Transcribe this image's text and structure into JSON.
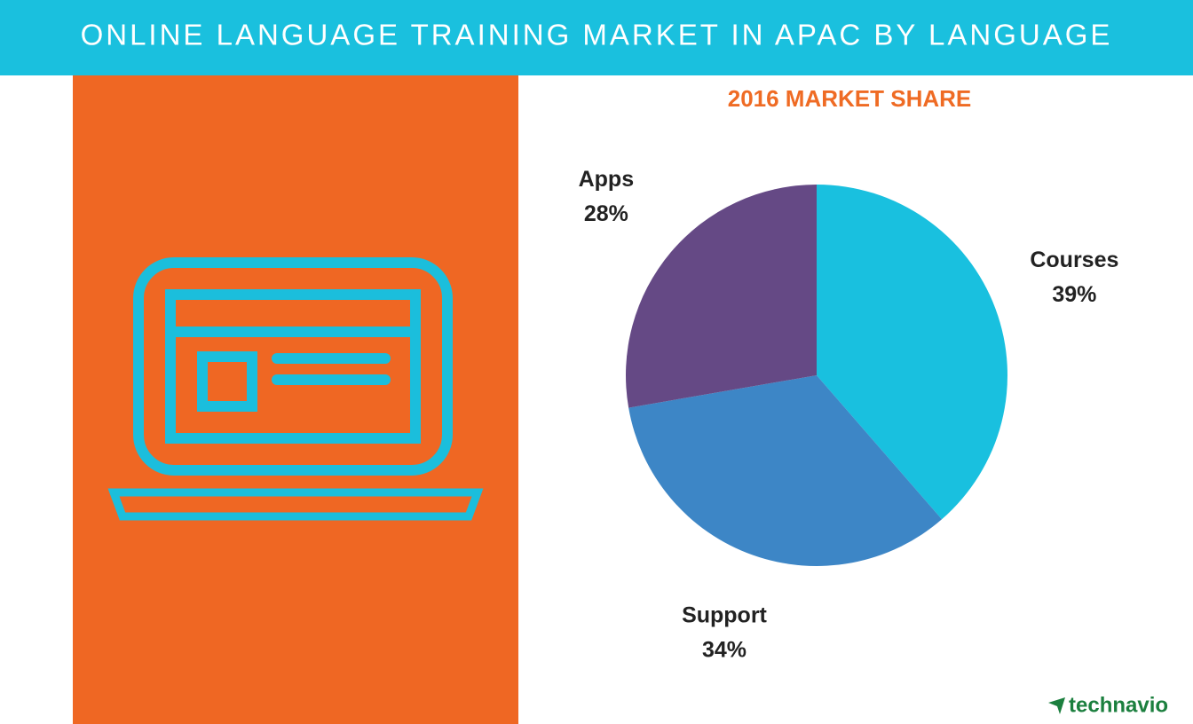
{
  "chart_data": {
    "type": "pie",
    "title": "ONLINE LANGUAGE TRAINING MARKET IN APAC BY LANGUAGE",
    "subtitle": "2016 MARKET SHARE",
    "categories": [
      "Courses",
      "Support",
      "Apps"
    ],
    "values": [
      39,
      34,
      28
    ],
    "value_labels": [
      "39%",
      "34%",
      "28%"
    ],
    "colors": [
      "#19c0df",
      "#3d86c6",
      "#654985"
    ]
  },
  "brand": "technavio"
}
